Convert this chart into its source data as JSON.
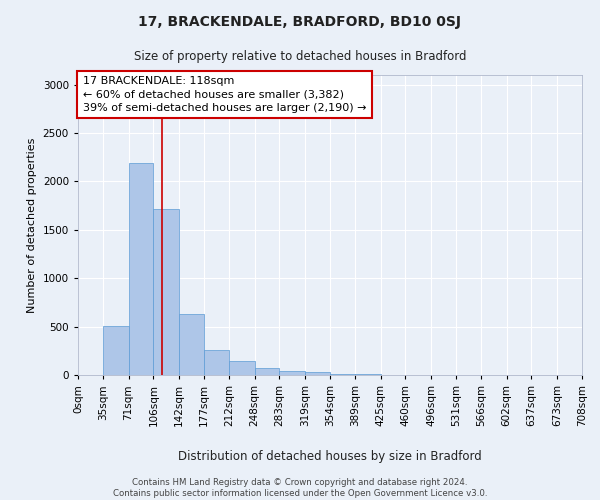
{
  "title1": "17, BRACKENDALE, BRADFORD, BD10 0SJ",
  "title2": "Size of property relative to detached houses in Bradford",
  "xlabel": "Distribution of detached houses by size in Bradford",
  "ylabel": "Number of detached properties",
  "footnote": "Contains HM Land Registry data © Crown copyright and database right 2024.\nContains public sector information licensed under the Open Government Licence v3.0.",
  "bar_bins": [
    0,
    35,
    71,
    106,
    142,
    177,
    212,
    248,
    283,
    319,
    354,
    389,
    425,
    460,
    496,
    531,
    566,
    602,
    637,
    673,
    708
  ],
  "bar_values": [
    5,
    510,
    2190,
    1720,
    630,
    260,
    140,
    75,
    45,
    30,
    15,
    10,
    5,
    3,
    2,
    2,
    1,
    1,
    1,
    1
  ],
  "bar_color": "#aec6e8",
  "bar_edge_color": "#5b9bd5",
  "bg_color": "#eaf0f8",
  "grid_color": "#ffffff",
  "property_line_x": 118,
  "property_line_color": "#cc0000",
  "annotation_box_text": "17 BRACKENDALE: 118sqm\n← 60% of detached houses are smaller (3,382)\n39% of semi-detached houses are larger (2,190) →",
  "ylim": [
    0,
    3100
  ],
  "yticks": [
    0,
    500,
    1000,
    1500,
    2000,
    2500,
    3000
  ]
}
